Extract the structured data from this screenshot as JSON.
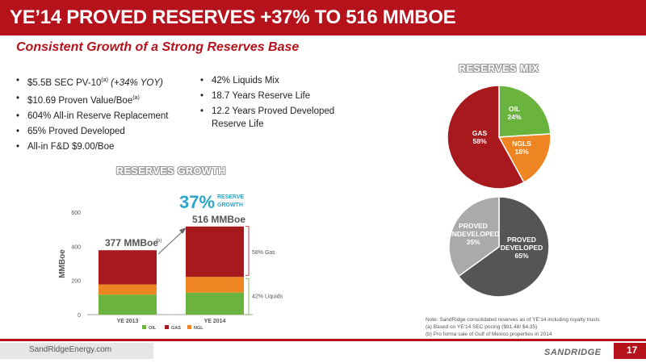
{
  "title": "YE’14 PROVED RESERVES +37% TO 516 MMBOE",
  "subtitle": "Consistent Growth of a Strong Reserves Base",
  "bullets_left": [
    {
      "text": "$5.5B SEC PV-10",
      "sup": "(a)",
      "italic": " (+34% YOY)"
    },
    {
      "text": "$10.69 Proven Value/Boe",
      "sup": "(a)",
      "italic": ""
    },
    {
      "text": "604% All-in Reserve Replacement",
      "sup": "",
      "italic": ""
    },
    {
      "text": "65% Proved Developed",
      "sup": "",
      "italic": ""
    },
    {
      "text": "All-in F&D $9.00/Boe",
      "sup": "",
      "italic": ""
    }
  ],
  "bullets_right": [
    "42% Liquids Mix",
    "18.7 Years Reserve Life",
    "12.2 Years Proved Developed Reserve Life"
  ],
  "growth_section_title": "RESERVES GROWTH",
  "mix_section_title": "RESERVES MIX",
  "colors": {
    "brand_red": "#b5121b",
    "oil": "#6ab43e",
    "gas": "#a8191e",
    "ngls": "#ef8522",
    "proved_developed": "#555555",
    "proved_undeveloped": "#aaaaaa"
  },
  "chart_data": [
    {
      "type": "bar",
      "stacked": true,
      "title": "RESERVES GROWTH",
      "ylabel": "MMBoe",
      "ylim": [
        0,
        600
      ],
      "yticks": [
        0,
        200,
        400,
        600
      ],
      "categories": [
        "YE 2013",
        "YE 2014"
      ],
      "series": [
        {
          "name": "OIL",
          "color": "#6ab43e",
          "values": [
            117,
            129
          ]
        },
        {
          "name": "NGL",
          "color": "#ef8522",
          "values": [
            60,
            92
          ]
        },
        {
          "name": "GAS",
          "color": "#a8191e",
          "values": [
            200,
            295
          ]
        }
      ],
      "total_labels": [
        "377 MMBoe",
        "516 MMBoe"
      ],
      "annotations": {
        "growth_pct": "37%",
        "growth_text_1": "RESERVE",
        "growth_text_2": "GROWTH",
        "footnote_mark": "(b)",
        "gas_bracket": "58% Gas",
        "liquids_bracket": "42% Liquids"
      }
    },
    {
      "type": "pie",
      "title": "RESERVES MIX",
      "slices": [
        {
          "label": "OIL",
          "value": 24,
          "display": "24%",
          "color": "#6ab43e"
        },
        {
          "label": "NGLS",
          "value": 18,
          "display": "18%",
          "color": "#ef8522"
        },
        {
          "label": "GAS",
          "value": 58,
          "display": "58%",
          "color": "#a8191e"
        }
      ]
    },
    {
      "type": "pie",
      "slices": [
        {
          "label": "PROVED DEVELOPED",
          "value": 65,
          "display": "65%",
          "color": "#555555"
        },
        {
          "label": "PROVED UNDEVELOPED",
          "value": 35,
          "display": "35%",
          "color": "#aaaaaa"
        }
      ]
    }
  ],
  "footnotes": [
    "Note: SandRidge consolidated reserves as of YE’14 including royalty trusts",
    "(a) Based on YE’14 SEC pricing ($91.48/ $4.35)",
    "(b) Pro forma sale of Gulf of Mexico properties in 2014"
  ],
  "footer_url": "SandRidgeEnergy.com",
  "page_number": "17",
  "logo_text": "SANDRIDGE"
}
